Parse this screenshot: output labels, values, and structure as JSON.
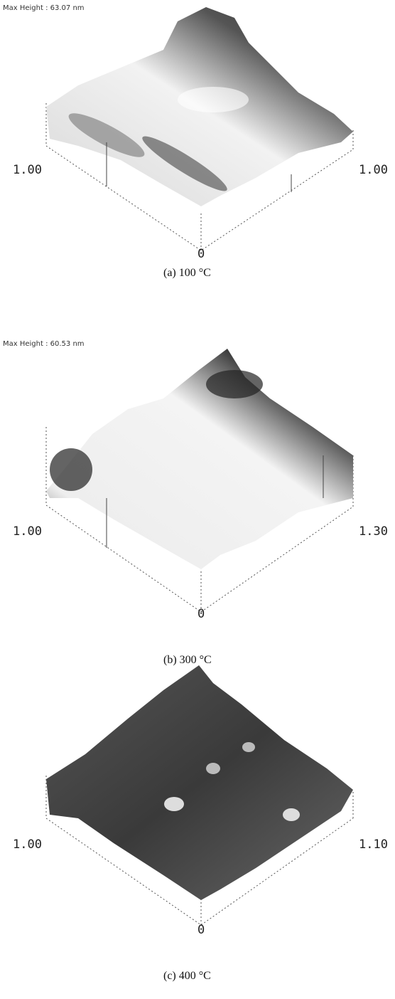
{
  "panels": [
    {
      "header": "Max Height : 63.07 nm",
      "left_label": "1.00",
      "right_label": "1.00",
      "origin_label": "0",
      "caption": "(a)  100 °C"
    },
    {
      "header": "Max Height : 60.53 nm",
      "left_label": "1.00",
      "right_label": "1.30",
      "origin_label": "0",
      "caption": "(b)  300 °C"
    },
    {
      "left_label": "1.00",
      "right_label": "1.10",
      "origin_label": "0",
      "caption": "(c)  400 °C"
    }
  ]
}
